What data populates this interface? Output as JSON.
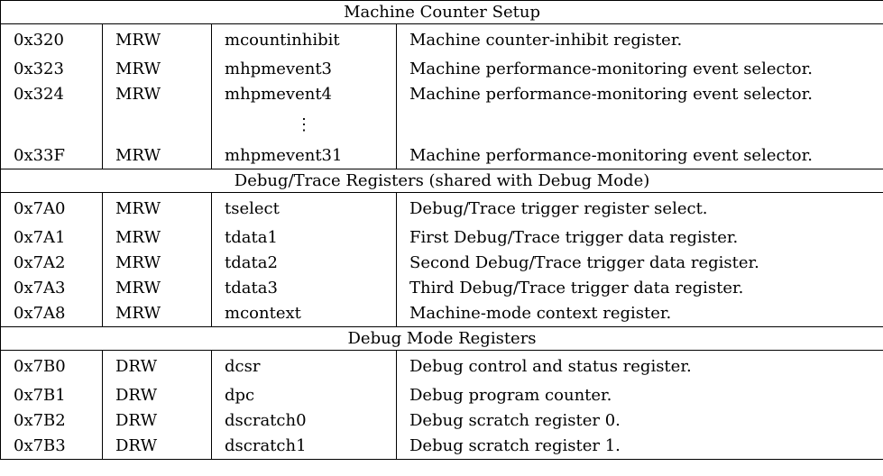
{
  "sections": [
    {
      "title": "Machine Counter Setup",
      "rows": [
        {
          "number": "0x320",
          "privilege": "MRW",
          "name": "mcountinhibit",
          "description": "Machine counter-inhibit register."
        },
        {
          "number": "0x323",
          "privilege": "MRW",
          "name": "mhpmevent3",
          "description": "Machine performance-monitoring event selector."
        },
        {
          "number": "0x324",
          "privilege": "MRW",
          "name": "mhpmevent4",
          "description": "Machine performance-monitoring event selector."
        },
        {
          "number": "",
          "privilege": "",
          "name": "⋮",
          "description": ""
        },
        {
          "number": "0x33F",
          "privilege": "MRW",
          "name": "mhpmevent31",
          "description": "Machine performance-monitoring event selector."
        }
      ]
    },
    {
      "title": "Debug/Trace Registers (shared with Debug Mode)",
      "rows": [
        {
          "number": "0x7A0",
          "privilege": "MRW",
          "name": "tselect",
          "description": "Debug/Trace trigger register select."
        },
        {
          "number": "0x7A1",
          "privilege": "MRW",
          "name": "tdata1",
          "description": "First Debug/Trace trigger data register."
        },
        {
          "number": "0x7A2",
          "privilege": "MRW",
          "name": "tdata2",
          "description": "Second Debug/Trace trigger data register."
        },
        {
          "number": "0x7A3",
          "privilege": "MRW",
          "name": "tdata3",
          "description": "Third Debug/Trace trigger data register."
        },
        {
          "number": "0x7A8",
          "privilege": "MRW",
          "name": "mcontext",
          "description": "Machine-mode context register."
        }
      ]
    },
    {
      "title": "Debug Mode Registers",
      "rows": [
        {
          "number": "0x7B0",
          "privilege": "DRW",
          "name": "dcsr",
          "description": "Debug control and status register."
        },
        {
          "number": "0x7B1",
          "privilege": "DRW",
          "name": "dpc",
          "description": "Debug program counter."
        },
        {
          "number": "0x7B2",
          "privilege": "DRW",
          "name": "dscratch0",
          "description": "Debug scratch register 0."
        },
        {
          "number": "0x7B3",
          "privilege": "DRW",
          "name": "dscratch1",
          "description": "Debug scratch register 1."
        }
      ]
    }
  ]
}
